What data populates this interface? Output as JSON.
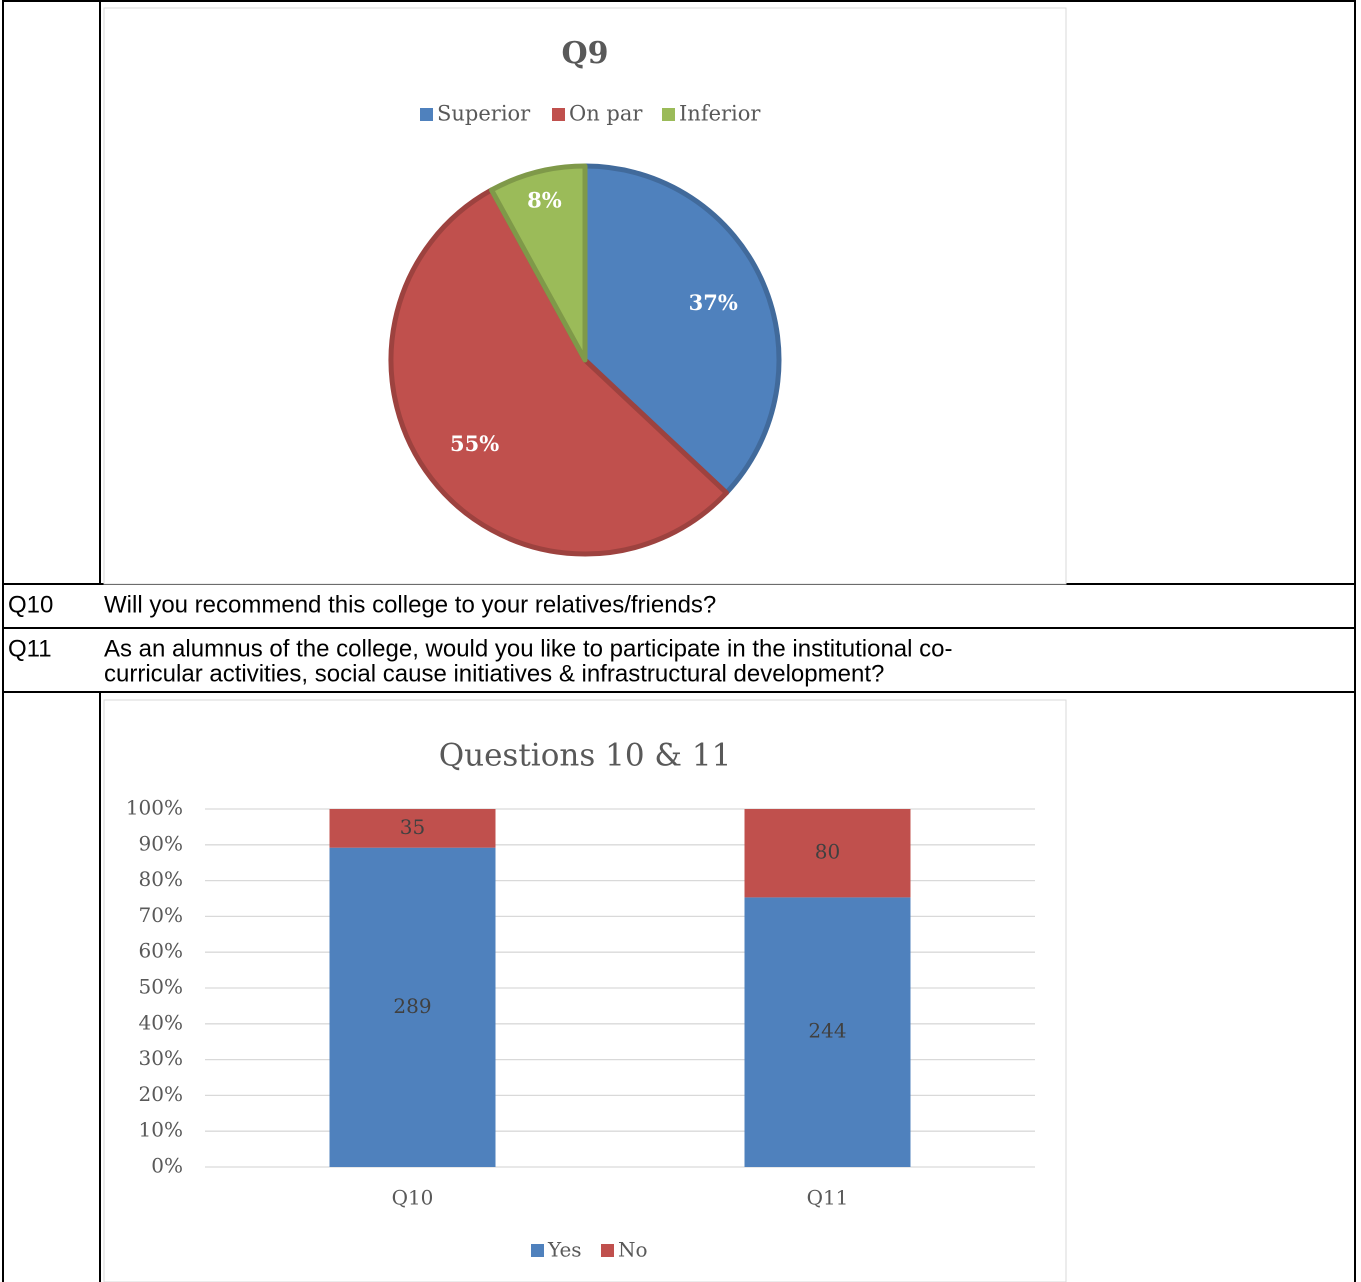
{
  "chart_data": [
    {
      "type": "pie",
      "title": "Q9",
      "categories": [
        "Superior",
        "On par",
        "Inferior"
      ],
      "values": [
        37,
        55,
        8
      ],
      "value_labels": [
        "37%",
        "55%",
        "8%"
      ],
      "colors": [
        "#4f81bd",
        "#c0504d",
        "#9bbb59"
      ],
      "legend": "top"
    },
    {
      "type": "bar",
      "stacking": "percent",
      "title": "Questions 10 & 11",
      "categories": [
        "Q10",
        "Q11"
      ],
      "series": [
        {
          "name": "Yes",
          "color": "#4f81bd",
          "values": [
            289,
            244
          ]
        },
        {
          "name": "No",
          "color": "#c0504d",
          "values": [
            35,
            80
          ]
        }
      ],
      "ylim": [
        0,
        100
      ],
      "yticks": [
        {
          "value": 0,
          "label": "0%"
        },
        {
          "value": 10,
          "label": "10%"
        },
        {
          "value": 20,
          "label": "20%"
        },
        {
          "value": 30,
          "label": "30%"
        },
        {
          "value": 40,
          "label": "40%"
        },
        {
          "value": 50,
          "label": "50%"
        },
        {
          "value": 60,
          "label": "60%"
        },
        {
          "value": 70,
          "label": "70%"
        },
        {
          "value": 80,
          "label": "80%"
        },
        {
          "value": 90,
          "label": "90%"
        },
        {
          "value": 100,
          "label": "100%"
        }
      ],
      "grid": true,
      "legend": "bottom"
    }
  ],
  "table": {
    "rows": [
      {
        "label": "Q10",
        "text": [
          "Will you recommend this college to your relatives/friends?"
        ]
      },
      {
        "label": "Q11",
        "text": [
          "As an alumnus of the college, would you like to participate in the institutional co-",
          "curricular activities, social cause initiatives  & infrastructural development?"
        ]
      }
    ]
  }
}
